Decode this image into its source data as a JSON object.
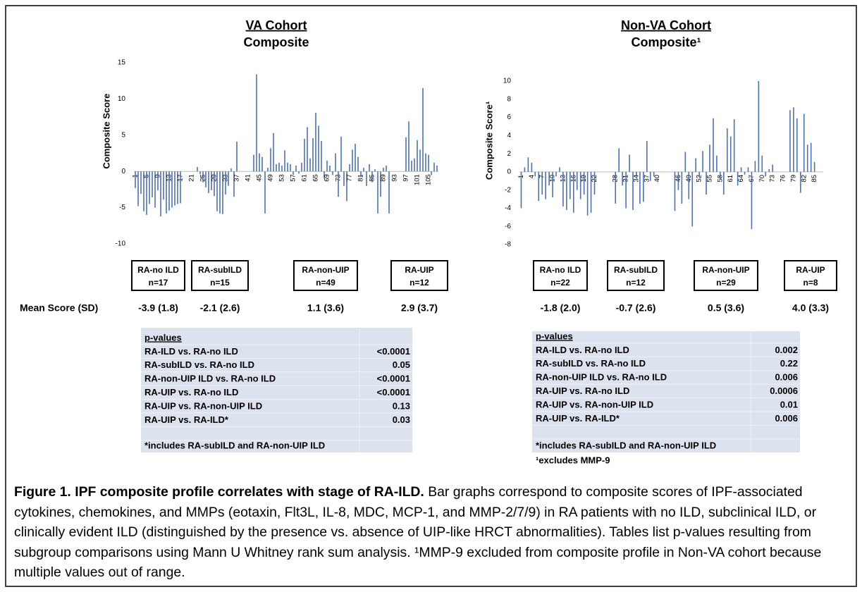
{
  "chart_data": [
    {
      "type": "bar",
      "title": "VA Cohort",
      "subtitle": "Composite",
      "y_label": "Composite Score",
      "color": "#4e72ad",
      "ylim": [
        -10,
        15
      ],
      "yticks": [
        -10,
        -5,
        0,
        5,
        10,
        15
      ],
      "categories": [
        "1",
        null,
        null,
        null,
        "5",
        null,
        null,
        null,
        "9",
        null,
        null,
        null,
        "13",
        null,
        null,
        null,
        "17",
        null,
        null,
        null,
        "21",
        null,
        null,
        null,
        "25",
        null,
        null,
        null,
        "29",
        null,
        null,
        null,
        "33",
        null,
        null,
        null,
        "37",
        null,
        null,
        null,
        "41",
        null,
        null,
        null,
        "45",
        null,
        null,
        null,
        "49",
        null,
        null,
        null,
        "53",
        null,
        null,
        null,
        "57",
        null,
        null,
        null,
        "61",
        null,
        null,
        null,
        "65",
        null,
        null,
        null,
        "69",
        null,
        null,
        null,
        "73",
        null,
        null,
        null,
        "77",
        null,
        null,
        null,
        "81",
        null,
        null,
        null,
        "85",
        null,
        null,
        null,
        "89",
        null,
        null,
        null,
        "93",
        null,
        null,
        null,
        "97",
        null,
        null,
        null,
        "101",
        null,
        null,
        null,
        "105",
        null,
        null,
        null
      ],
      "values": [
        -2.3,
        -4.8,
        -3.1,
        -5.5,
        -6.0,
        -4.5,
        -3.6,
        -5.0,
        -2.6,
        -6.2,
        -3.9,
        -5.8,
        -5.4,
        -5.0,
        -4.7,
        -4.5,
        -4.4,
        null,
        null,
        null,
        null,
        null,
        0.6,
        -0.4,
        -1.5,
        -2.2,
        -3.0,
        -2.6,
        -3.4,
        -5.5,
        -5.8,
        -5.9,
        -3.2,
        -2.0,
        0.4,
        -3.5,
        4.1,
        null,
        null,
        null,
        null,
        null,
        2.3,
        13.4,
        2.5,
        2.0,
        -5.8,
        0.5,
        3.2,
        5.3,
        1.0,
        1.2,
        0.8,
        2.9,
        1.2,
        1.0,
        -0.5,
        0.8,
        -0.3,
        1.2,
        4.5,
        6.1,
        1.8,
        4.6,
        8.1,
        6.3,
        4.2,
        -1.0,
        1.5,
        0.8,
        -0.5,
        2.5,
        -3.5,
        4.8,
        -2.0,
        -4.1,
        1.0,
        3.0,
        3.8,
        2.0,
        -0.8,
        0.5,
        -2.0,
        1.0,
        -1.5,
        0.3,
        -5.8,
        -3.5,
        0.5,
        0.8,
        -5.8,
        null,
        null,
        null,
        null,
        null,
        4.7,
        6.9,
        1.5,
        1.8,
        4.3,
        3.0,
        11.5,
        2.5,
        2.3,
        -0.5,
        1.2,
        0.8
      ],
      "groups": [
        {
          "label": "RA-no ILD",
          "n": "n=17",
          "mean": "-3.9 (1.8)"
        },
        {
          "label": "RA-subILD",
          "n": "n=15",
          "mean": "-2.1 (2.6)"
        },
        {
          "label": "RA-non-UIP",
          "n": "n=49",
          "mean": "1.1 (3.6)"
        },
        {
          "label": "RA-UIP",
          "n": "n=12",
          "mean": "2.9 (3.7)"
        }
      ]
    },
    {
      "type": "bar",
      "title": "Non-VA Cohort",
      "subtitle": "Composite¹",
      "y_label": "Composite Score¹",
      "color": "#4e72ad",
      "ylim": [
        -8,
        10
      ],
      "yticks": [
        -8,
        -6,
        -4,
        -2,
        0,
        2,
        4,
        6,
        8,
        10
      ],
      "categories": [
        "1",
        null,
        null,
        "4",
        null,
        null,
        "7",
        null,
        null,
        "10",
        null,
        null,
        "13",
        null,
        null,
        "16",
        null,
        null,
        "19",
        null,
        null,
        "22",
        null,
        null,
        null,
        null,
        null,
        "28",
        null,
        null,
        "31",
        null,
        null,
        "34",
        null,
        null,
        "37",
        null,
        null,
        "40",
        null,
        null,
        null,
        null,
        null,
        "46",
        null,
        null,
        "49",
        null,
        null,
        "52",
        null,
        null,
        "55",
        null,
        null,
        "58",
        null,
        null,
        "61",
        null,
        null,
        "64",
        null,
        null,
        "67",
        null,
        null,
        "70",
        null,
        null,
        "73",
        null,
        null,
        "76",
        null,
        null,
        "79",
        null,
        null,
        "82",
        null,
        null,
        "85",
        null,
        null
      ],
      "values": [
        -4.0,
        0.5,
        1.6,
        1.0,
        -0.5,
        -3.2,
        -2.5,
        -3.0,
        -1.5,
        -2.8,
        -0.5,
        0.5,
        -3.8,
        -4.2,
        -3.0,
        -4.5,
        -2.0,
        -3.0,
        -2.5,
        -4.8,
        -4.5,
        -2.5,
        null,
        null,
        null,
        null,
        null,
        -3.5,
        2.6,
        -1.5,
        -4.0,
        1.9,
        -4.2,
        -0.5,
        -3.5,
        -3.3,
        3.4,
        -1.0,
        -0.5,
        null,
        null,
        null,
        null,
        null,
        -4.3,
        -2.0,
        -3.5,
        2.2,
        -3.0,
        -6.0,
        1.5,
        -0.5,
        2.3,
        -2.5,
        3.0,
        5.9,
        1.8,
        -0.8,
        -2.5,
        4.8,
        3.9,
        5.8,
        -1.5,
        0.5,
        -0.3,
        0.5,
        -6.3,
        1.2,
        10.0,
        1.8,
        -0.5,
        0.3,
        0.8,
        null,
        null,
        null,
        null,
        6.8,
        7.1,
        5.9,
        -2.3,
        6.4,
        3.0,
        3.2,
        1.1,
        null,
        null
      ],
      "groups": [
        {
          "label": "RA-no ILD",
          "n": "n=22",
          "mean": "-1.8 (2.0)"
        },
        {
          "label": "RA-subILD",
          "n": "n=12",
          "mean": "-0.7 (2.6)"
        },
        {
          "label": "RA-non-UIP",
          "n": "n=29",
          "mean": "0.5 (3.6)"
        },
        {
          "label": "RA-UIP",
          "n": "n=8",
          "mean": "4.0 (3.3)"
        }
      ]
    }
  ],
  "mean_label": "Mean Score (SD)",
  "tables": [
    {
      "header": "p-values",
      "rows": [
        [
          "RA-ILD vs. RA-no ILD",
          "<0.0001"
        ],
        [
          "RA-subILD vs. RA-no ILD",
          "0.05"
        ],
        [
          "RA-non-UIP ILD vs. RA-no ILD",
          "<0.0001"
        ],
        [
          "RA-UIP vs. RA-no ILD",
          "<0.0001"
        ],
        [
          "RA-UIP vs. RA-non-UIP ILD",
          "0.13"
        ],
        [
          "RA-UIP vs. RA-ILD*",
          "0.03"
        ]
      ],
      "notes": [
        "*includes RA-subILD and RA-non-UIP ILD"
      ]
    },
    {
      "header": "p-values",
      "rows": [
        [
          "RA-ILD vs. RA-no ILD",
          "0.002"
        ],
        [
          "RA-subILD vs. RA-no ILD",
          "0.22"
        ],
        [
          "RA-non-UIP ILD vs. RA-no ILD",
          "0.006"
        ],
        [
          "RA-UIP vs. RA-no ILD",
          "0.0006"
        ],
        [
          "RA-UIP vs. RA-non-UIP ILD",
          "0.01"
        ],
        [
          "RA-UIP vs. RA-ILD*",
          "0.006"
        ]
      ],
      "notes": [
        "*includes RA-subILD and RA-non-UIP ILD",
        "¹excludes MMP-9"
      ]
    }
  ],
  "caption": {
    "bold": "Figure 1.  IPF composite profile correlates with stage of RA-ILD.",
    "text": "  Bar graphs correspond to composite scores of IPF-associated cytokines, chemokines, and MMPs (eotaxin, Flt3L, IL-8, MDC, MCP-1, and MMP-2/7/9) in RA patients with no ILD, subclinical ILD, or clinically evident ILD (distinguished by the presence vs. absence of UIP-like HRCT abnormalities).  Tables list p-values resulting from subgroup comparisons using Mann U Whitney rank sum analysis.  ¹MMP-9 excluded from composite profile in Non-VA cohort because multiple values out of range."
  }
}
